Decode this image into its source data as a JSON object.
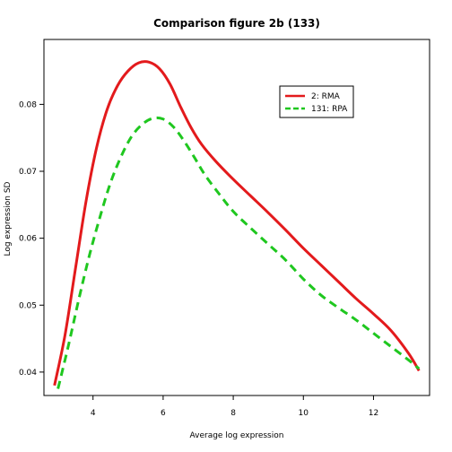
{
  "chart_data": {
    "type": "line",
    "title": "Comparison figure 2b (133)",
    "xlabel": "Average log expression",
    "ylabel": "Log expression SD",
    "xlim": [
      2.6,
      13.6
    ],
    "ylim": [
      0.0365,
      0.0897
    ],
    "xticks": [
      4,
      6,
      8,
      10,
      12
    ],
    "yticks": [
      0.04,
      0.05,
      0.06,
      0.07,
      0.08
    ],
    "grid": false,
    "legend_position": "top-right",
    "series": [
      {
        "name": "2: RMA",
        "color": "#e31a1c",
        "dash": "solid",
        "x": [
          2.9,
          3.2,
          3.5,
          3.8,
          4.1,
          4.4,
          4.7,
          5.0,
          5.3,
          5.6,
          5.9,
          6.2,
          6.5,
          6.8,
          7.1,
          7.5,
          8.0,
          8.5,
          9.0,
          9.5,
          10.0,
          10.5,
          11.0,
          11.5,
          12.0,
          12.5,
          13.0,
          13.3
        ],
        "y": [
          0.038,
          0.0455,
          0.0555,
          0.0655,
          0.0735,
          0.0792,
          0.0828,
          0.085,
          0.0862,
          0.0863,
          0.0853,
          0.083,
          0.0796,
          0.0765,
          0.074,
          0.0715,
          0.0688,
          0.0663,
          0.0638,
          0.0612,
          0.0585,
          0.056,
          0.0535,
          0.051,
          0.0487,
          0.0462,
          0.0428,
          0.0402
        ]
      },
      {
        "name": "131: RPA",
        "color": "#1fc71f",
        "dash": "dashed",
        "x": [
          3.0,
          3.3,
          3.6,
          3.9,
          4.2,
          4.5,
          4.8,
          5.1,
          5.4,
          5.7,
          6.0,
          6.3,
          6.6,
          6.9,
          7.2,
          7.6,
          8.0,
          8.5,
          9.0,
          9.5,
          10.0,
          10.5,
          11.0,
          11.5,
          12.0,
          12.5,
          13.0,
          13.3
        ],
        "y": [
          0.0375,
          0.044,
          0.051,
          0.0575,
          0.0632,
          0.0683,
          0.0722,
          0.0752,
          0.077,
          0.0779,
          0.0778,
          0.0766,
          0.0745,
          0.072,
          0.0694,
          0.0666,
          0.064,
          0.0615,
          0.0591,
          0.0567,
          0.0539,
          0.0515,
          0.0496,
          0.0478,
          0.0458,
          0.0438,
          0.0418,
          0.0405
        ]
      }
    ]
  }
}
